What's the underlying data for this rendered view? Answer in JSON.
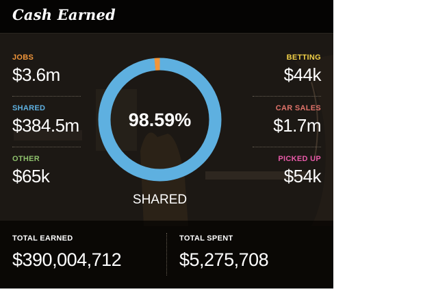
{
  "title": "Cash Earned",
  "colors": {
    "jobs": "#f0953a",
    "shared": "#5eb0e0",
    "other": "#8ec06c",
    "betting": "#f2d148",
    "car_sales": "#e0736a",
    "picked_up": "#e85aa8"
  },
  "left_stats": [
    {
      "label": "JOBS",
      "value": "$3.6m"
    },
    {
      "label": "SHARED",
      "value": "$384.5m"
    },
    {
      "label": "OTHER",
      "value": "$65k"
    }
  ],
  "right_stats": [
    {
      "label": "BETTING",
      "value": "$44k"
    },
    {
      "label": "CAR SALES",
      "value": "$1.7m"
    },
    {
      "label": "PICKED UP",
      "value": "$54k"
    }
  ],
  "donut": {
    "center_value": "98.59%",
    "caption": "SHARED",
    "highlight_fraction": 0.9859
  },
  "totals": {
    "earned_label": "TOTAL EARNED",
    "earned_value": "$390,004,712",
    "spent_label": "TOTAL SPENT",
    "spent_value": "$5,275,708"
  }
}
